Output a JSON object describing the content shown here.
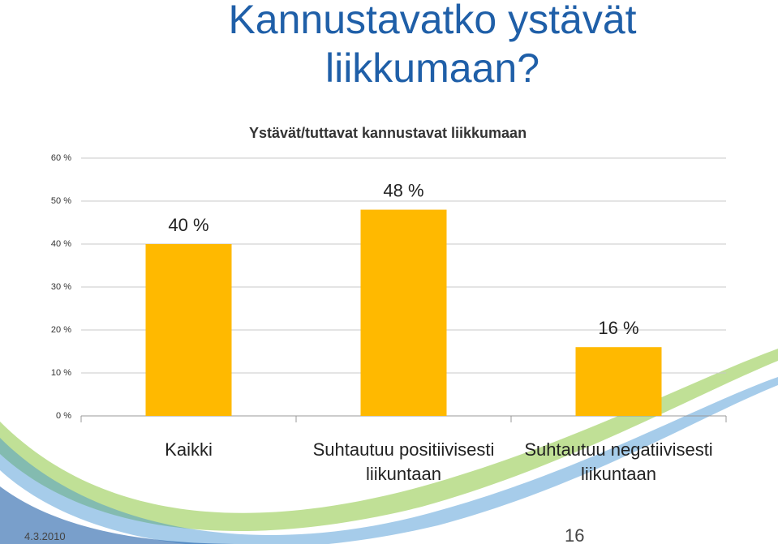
{
  "slide_title": "Kannustavatko ystävät liikkumaan?",
  "footer": {
    "date": "4.3.2010",
    "page_number": "16"
  },
  "chart_data": {
    "type": "bar",
    "title": "Ystävät/tuttavat kannustavat liikkumaan",
    "categories": [
      "Kaikki",
      "Suhtautuu positiivisesti liikuntaan",
      "Suhtautuu negatiivisesti liikuntaan"
    ],
    "values": [
      40,
      48,
      16
    ],
    "value_labels": [
      "40 %",
      "48 %",
      "16 %"
    ],
    "color": "#ffb900",
    "ylim": [
      0,
      60
    ],
    "yticks": [
      {
        "value": 0,
        "label": "0 %"
      },
      {
        "value": 10,
        "label": "10 %"
      },
      {
        "value": 20,
        "label": "20 %"
      },
      {
        "value": 30,
        "label": "30 %"
      },
      {
        "value": 40,
        "label": "40 %"
      },
      {
        "value": 50,
        "label": "50 %"
      },
      {
        "value": 60,
        "label": "60 %"
      }
    ],
    "grid": true
  }
}
